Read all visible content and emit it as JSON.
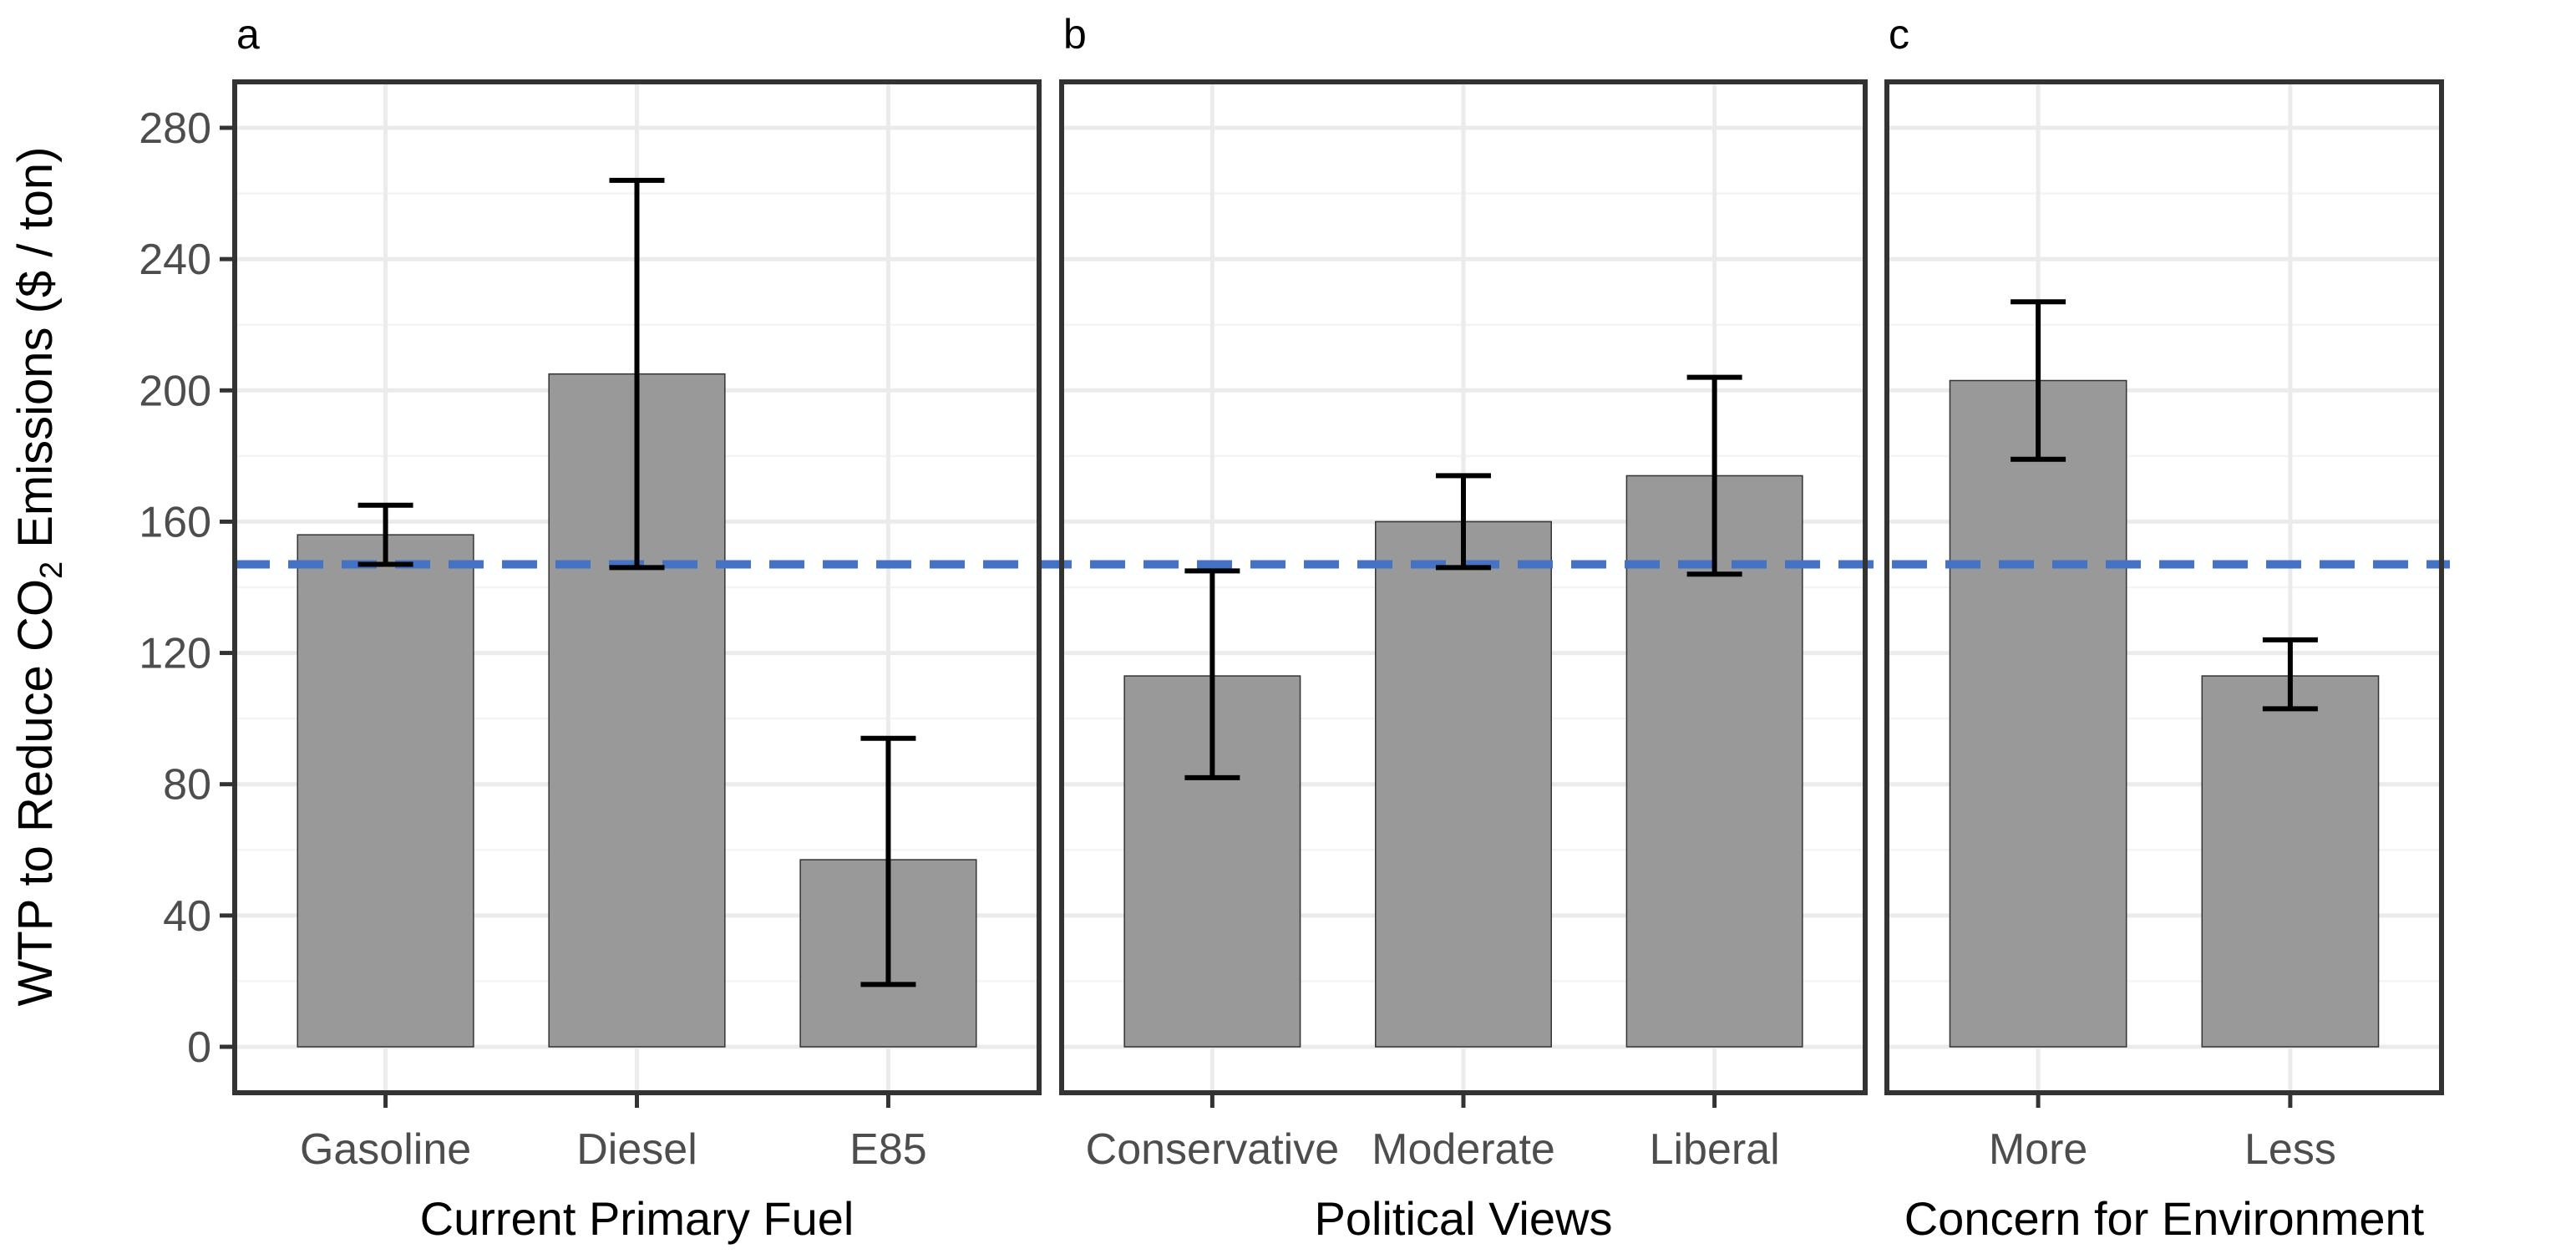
{
  "ylabel_parts": {
    "prefix": "WTP to Reduce CO",
    "subscript": "2",
    "suffix": " Emissions ($ / ton)"
  },
  "reference_line": {
    "value": 147,
    "color": "#4472C4"
  },
  "bar_color": "#999999",
  "chart_data": [
    {
      "type": "bar",
      "panel_label": "a",
      "xlabel": "Current Primary Fuel",
      "ylabel": "WTP to Reduce CO2 Emissions ($ / ton)",
      "categories": [
        "Gasoline",
        "Diesel",
        "E85"
      ],
      "values": [
        156,
        205,
        57
      ],
      "error_low": [
        147,
        146,
        19
      ],
      "error_high": [
        165,
        264,
        94
      ],
      "ylim": [
        -14,
        294
      ],
      "yticks": [
        "0",
        "40",
        "80",
        "120",
        "160",
        "200",
        "240",
        "280"
      ],
      "grid": true
    },
    {
      "type": "bar",
      "panel_label": "b",
      "xlabel": "Political Views",
      "categories": [
        "Conservative",
        "Moderate",
        "Liberal"
      ],
      "values": [
        113,
        160,
        174
      ],
      "error_low": [
        82,
        146,
        144
      ],
      "error_high": [
        145,
        174,
        204
      ],
      "ylim": [
        -14,
        294
      ],
      "grid": true
    },
    {
      "type": "bar",
      "panel_label": "c",
      "xlabel": "Concern for Environment",
      "categories": [
        "More",
        "Less"
      ],
      "values": [
        203,
        113
      ],
      "error_low": [
        179,
        103
      ],
      "error_high": [
        227,
        124
      ],
      "ylim": [
        -14,
        294
      ],
      "grid": true
    }
  ]
}
